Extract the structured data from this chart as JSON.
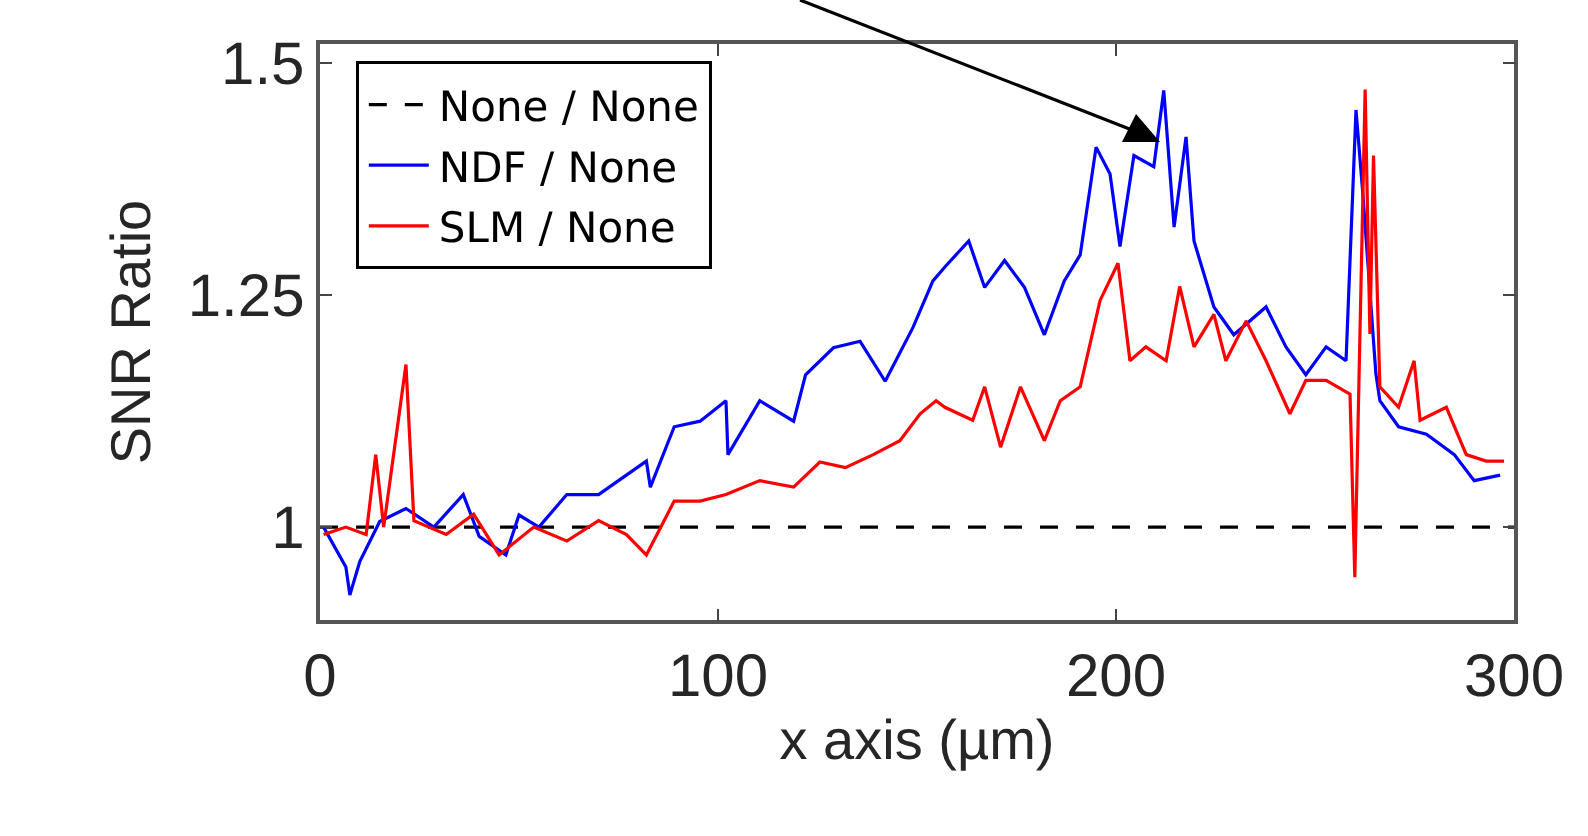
{
  "chart_data": {
    "type": "line",
    "xlabel": "x axis (µm)",
    "ylabel": "SNR Ratio",
    "xlim": [
      0,
      300
    ],
    "ylim": [
      0.9,
      1.52
    ],
    "xticks": [
      0,
      100,
      200,
      300
    ],
    "yticks": [
      1,
      1.25,
      1.5
    ],
    "grid": false,
    "legend": "top left",
    "marker": "none",
    "series": [
      {
        "name": "None / None",
        "color": "#000000",
        "line_style": "dashed",
        "x": [
          0,
          300
        ],
        "values": [
          1,
          1
        ]
      },
      {
        "name": "NDF / None",
        "color": "#0000ff",
        "line_style": "solid",
        "x": [
          0.9,
          6.5,
          7.5,
          10,
          15,
          21.6,
          28.6,
          36,
          40,
          46.7,
          50,
          55,
          62,
          70,
          75,
          82,
          83,
          89,
          95.5,
          102,
          102.5,
          110.5,
          119,
          122,
          129,
          135.7,
          142,
          149,
          154,
          157,
          163,
          167,
          172,
          177,
          182,
          187,
          191,
          195,
          198.5,
          201,
          204.5,
          209.5,
          212,
          214.6,
          217.6,
          219.6,
          224.6,
          229.6,
          237.7,
          242.7,
          247.7,
          252.8,
          257.8,
          260.3,
          262,
          265.3,
          266.3,
          271,
          278,
          285,
          290,
          296.5
        ],
        "values": [
          1.0,
          0.957,
          0.927,
          0.963,
          1.006,
          1.02,
          1.0,
          1.035,
          0.99,
          0.97,
          1.013,
          1.0,
          1.035,
          1.035,
          1.05,
          1.071,
          1.043,
          1.108,
          1.114,
          1.136,
          1.078,
          1.136,
          1.114,
          1.164,
          1.193,
          1.2,
          1.157,
          1.215,
          1.265,
          1.28,
          1.308,
          1.258,
          1.287,
          1.258,
          1.207,
          1.265,
          1.293,
          1.409,
          1.38,
          1.302,
          1.4,
          1.388,
          1.47,
          1.323,
          1.42,
          1.308,
          1.237,
          1.207,
          1.237,
          1.194,
          1.164,
          1.194,
          1.179,
          1.449,
          1.36,
          1.165,
          1.136,
          1.108,
          1.1,
          1.078,
          1.05,
          1.056
        ]
      },
      {
        "name": "SLM / None",
        "color": "#ff0000",
        "line_style": "solid",
        "x": [
          0.9,
          6.5,
          11.6,
          14,
          16,
          21.6,
          23.6,
          31.7,
          38.6,
          45,
          53.7,
          62,
          70,
          77,
          82,
          89,
          95.5,
          102,
          110.5,
          119,
          125.6,
          132,
          139,
          145.7,
          150.8,
          154.8,
          157,
          164,
          167,
          171,
          176,
          182,
          186,
          191,
          196,
          200.5,
          203.5,
          207.5,
          212.6,
          216,
          219.6,
          224.6,
          227.6,
          232.7,
          237.7,
          243.7,
          247.7,
          252.8,
          258.8,
          260,
          262.6,
          263.8,
          264.7,
          266.3,
          271,
          274.9,
          276.4,
          283,
          288,
          293,
          297.5
        ],
        "values": [
          0.992,
          1.0,
          0.992,
          1.078,
          1.0,
          1.175,
          1.007,
          0.992,
          1.014,
          0.97,
          1.0,
          0.985,
          1.007,
          0.992,
          0.97,
          1.028,
          1.028,
          1.035,
          1.05,
          1.043,
          1.07,
          1.064,
          1.078,
          1.093,
          1.122,
          1.136,
          1.129,
          1.115,
          1.151,
          1.086,
          1.151,
          1.093,
          1.136,
          1.151,
          1.244,
          1.284,
          1.179,
          1.194,
          1.179,
          1.259,
          1.194,
          1.229,
          1.179,
          1.222,
          1.179,
          1.122,
          1.158,
          1.158,
          1.143,
          0.946,
          1.471,
          1.208,
          1.4,
          1.151,
          1.129,
          1.179,
          1.115,
          1.129,
          1.078,
          1.071,
          1.071
        ]
      }
    ]
  }
}
